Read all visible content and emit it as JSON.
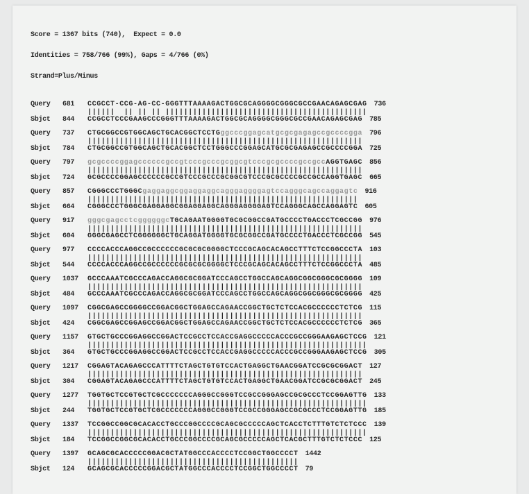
{
  "header": {
    "line1": "Score = 1367 bits (740),  Expect = 0.0",
    "line2": "Identities = 758/766 (99%), Gaps = 4/766 (0%)",
    "line3": "Strand=Plus/Minus"
  },
  "labels": {
    "query": "Query",
    "sbjct": "Sbjct"
  },
  "blocks": [
    {
      "q_start": "681",
      "q_seq": "CCGCCT-CCG-AG-CC-GGGTTTAAAAGACTGGCGCAGGGGCGGGCGCCGAACAGAGCGAG",
      "q_end": "736",
      "mid": "||||||  || || || ||||||||||||||||||||||||||||||||||||||||||||",
      "s_start": "844",
      "s_seq": "CCGCCTCCCGAAGCCCGGGTTTAAAAGACTGGCGCAGGGGCGGGCGCCGAACAGAGCGAG",
      "s_end": "785"
    },
    {
      "q_start": "737",
      "q_seq": "CTGCGGCCGTGGCAGCTGCACGGCTCCTGggcccggagcatgcgcgagagccgccccgga",
      "q_end": "796",
      "q_gray": [
        29,
        60
      ],
      "mid": "||||||||||||||||||||||||||||||||||||||||||||||||||||||||||||",
      "s_start": "784",
      "s_seq": "CTGCGGCCGTGGCAGCTGCACGGCTCCTGGGCCCGGAGCATGCGCGAGAGCCGCCCCGGA",
      "s_end": "725"
    },
    {
      "q_start": "797",
      "q_seq": "gcgccccggagccccccgccgtcccgcccgcggcgtcccgcgccccgccgccAGGTGAGC",
      "q_end": "856",
      "q_gray": [
        0,
        52
      ],
      "mid": "||||||||||||||||||||||||||||||||||||||||||||||||||||||||||||",
      "s_start": "724",
      "s_seq": "GCGCCCCGGAGCCCCCCGCCGTCCCGCCCGCGGCGTCCCGCGCCCCGCCGCCAGGTGAGC",
      "s_end": "665"
    },
    {
      "q_start": "857",
      "q_seq": "CGGGCCCTGGGCgaggaggcggaggaggcagggaggggagtccagggcagccaggagtc",
      "q_end": "916",
      "q_gray": [
        12,
        60
      ],
      "mid": "|||||||||||||||||||||||||||||||||||||||||||||||||||||||||||",
      "s_start": "664",
      "s_seq": "CGGGCCCTGGGCGAGGAGGCGGAGGAGGCAGGGAGGGGAGTCCAGGGCAGCCAGGAGTC",
      "s_end": "605"
    },
    {
      "q_start": "917",
      "q_seq": "gggcgagcctcggggggcTGCAGAATGGGGTGCGCGGCCGATGCCCCTGACCCTCGCCGG",
      "q_end": "976",
      "q_gray": [
        0,
        18
      ],
      "mid": "||||||||||||||||||||||||||||||||||||||||||||||||||||||||||||",
      "s_start": "604",
      "s_seq": "GGGCGAGCCTCGGGGGGCTGCAGGATGGGGTGCGCGGCCGATGCCCCTGACCCTCGCCGG",
      "s_end": "545"
    },
    {
      "q_start": "977",
      "q_seq": "CCCCACCCAGGCCGCCCCCCGCGCGCGGGGCTCCCGCAGCACAGCCTTTCTCCGGCCCTA",
      "q_end": "103",
      "mid": "||||||||||||||||||||||||||||||||||||||||||||||||||||||||||||",
      "s_start": "544",
      "s_seq": "CCCCACCCAGGCCGCCCCCCGCGCGCGGGGCTCCCGCAGCACAGCCTTTCTCCGGCCCTA",
      "s_end": "485"
    },
    {
      "q_start": "1037",
      "q_seq": "GCCCAAATCGCCCAGACCAGGCGCGGATCCCAGCCTGGCCAGCAGGCGGCGGGCGCGGGG",
      "q_end": "109",
      "mid": "||||||||||||||||||||||||||||||||||||||||||||||||||||||||||||",
      "s_start": "484",
      "s_seq": "GCCCAAATCGCCCAGACCAGGCGCGGATCCCAGCCTGGCCAGCAGGCGGCGGGCGCGGGG",
      "s_end": "425"
    },
    {
      "q_start": "1097",
      "q_seq": "CGGCGAGCCGGGGCCGGACGGCTGGAGCCAGAACCGGCTGCTCTCCACGCCCCCCTCTCG",
      "q_end": "115",
      "mid": "||||||||||||||||||||||||||||||||||||||||||||||||||||||||||||",
      "s_start": "424",
      "s_seq": "CGGCGAGCCGGAGCCGGACGGCTGGAGCCAGAACCGGCTGCTCTCCACGCCCCCCTCTCG",
      "s_end": "365"
    },
    {
      "q_start": "1157",
      "q_seq": "GTGCTGCCCGGAGGCCGGACTCCGCCTCCACCGAGGCCCCCACCCGCCGGGAAGAGCTCCG",
      "q_end": "121",
      "mid": "|||||||||||||||||||||||||||||||||||||||||||||||||||||||||||||",
      "s_start": "364",
      "s_seq": "GTGCTGCCCGGAGGCCGGACTCCGCCTCCACCGAGGCCCCCACCCGCCGGGAAGAGCTCCG",
      "s_end": "305"
    },
    {
      "q_start": "1217",
      "q_seq": "CGGAGTACAGAGCCCATTTTCTAGCTGTGTCCACTGAGGCTGAACGGATCCGCGCGGACT",
      "q_end": "127",
      "mid": "||||||||||||||||||||||||||||||||||||||||||||||||||||||||||||",
      "s_start": "304",
      "s_seq": "CGGAGTACAGAGCCCATTTTCTAGCTGTGTCCACTGAGGCTGAACGGATCCGCGCGGACT",
      "s_end": "245"
    },
    {
      "q_start": "1277",
      "q_seq": "TGGTGCTCCGTGCTCGCCCCCCCAGGGCCGGGTCCGCCGGGAGCCGCGCCCTCCGGAGTTG",
      "q_end": "133",
      "mid": "|||||||||||||||||||||||||||||||||||||||||||||||||||||||||||||",
      "s_start": "244",
      "s_seq": "TGGTGCTCCGTGCTCGCCCCCCCAGGGCCGGGTCCGCCGGGAGCCGCGCCCTCCGGAGTTG",
      "s_end": "185"
    },
    {
      "q_start": "1337",
      "q_seq": "TCCGGCCGGCGCACACCTGCCCGGCCCCGCAGCGCCCCCAGCTCACCTCTTTGTCTCTCCC",
      "q_end": "139",
      "mid": "|||||||||||||||||||||||||||||||||||||||||||||||||||||||||||||",
      "s_start": "184",
      "s_seq": "TCCGGCCGGCGCACACCTGCCCGGCCCCGCAGCGCCCCCAGCTCACGCTTTGTCTCTCCC",
      "s_end": "125"
    },
    {
      "q_start": "1397",
      "q_seq": "GCAGCGCACCCCCGGACGCTATGGCCCACCCCTCCGGCTGGCCCCT",
      "q_end": "1442",
      "mid": "||||||||||||||||||||||||||||||||||||||||||||||",
      "s_start": "124",
      "s_seq": "GCAGCGCACCCCCGGACGCTATGGCCCACCCCTCCGGCTGGCCCCT",
      "s_end": "79"
    }
  ]
}
